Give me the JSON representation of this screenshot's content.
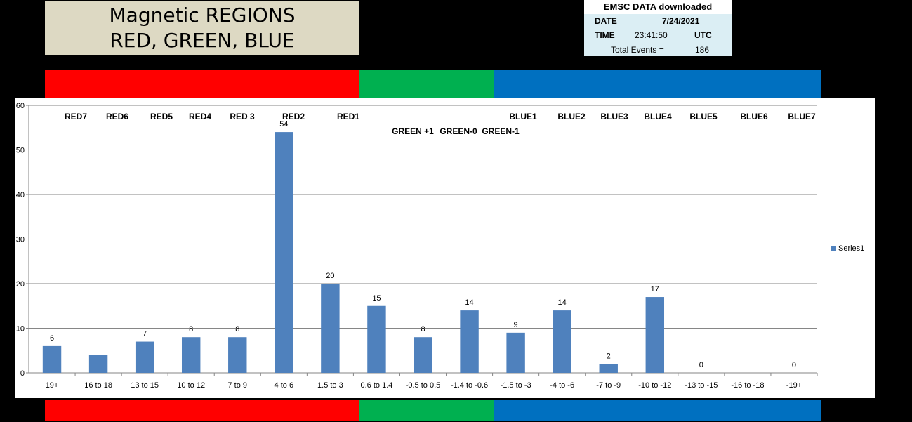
{
  "title": {
    "line1": "Magnetic REGIONS",
    "line2": "RED, GREEN, BLUE"
  },
  "info": {
    "header": "EMSC DATA downloaded",
    "date_label": "DATE",
    "date_value": "7/24/2021",
    "time_label": "TIME",
    "time_value": "23:41:50",
    "timezone": "UTC",
    "total_label": "Total Events  =",
    "total_value": "186"
  },
  "colors": {
    "red": "#ff0000",
    "green": "#00b050",
    "blue": "#0070c0",
    "bar": "#4f81bd"
  },
  "chart_data": {
    "type": "bar",
    "categories": [
      "19+",
      "16 to 18",
      "13 to 15",
      "10 to 12",
      "7 to 9",
      "4 to 6",
      "1.5 to 3",
      "0.6 to 1.4",
      "-0.5 to 0.5",
      "-1.4 to -0.6",
      "-1.5 to -3",
      "-4 to -6",
      "-7 to -9",
      "-10 to -12",
      "-13 to -15",
      "-16 to -18",
      "-19+"
    ],
    "series": [
      {
        "name": "Series1",
        "values": [
          6,
          4,
          7,
          8,
          8,
          54,
          20,
          15,
          8,
          14,
          9,
          14,
          2,
          17,
          0,
          0,
          0
        ],
        "data_labels": [
          "6",
          "",
          "7",
          "8",
          "8",
          "54",
          "20",
          "15",
          "8",
          "14",
          "9",
          "14",
          "2",
          "17",
          "0",
          "",
          "0"
        ]
      }
    ],
    "ylim": [
      0,
      60
    ],
    "yticks": [
      0,
      10,
      20,
      30,
      40,
      50,
      60
    ],
    "grid": true,
    "legend_position": "right",
    "region_labels": [
      "RED7",
      "RED6",
      "RED5",
      "RED4",
      "RED 3",
      "RED2",
      "RED1",
      "GREEN +1",
      "GREEN-0",
      "GREEN-1",
      "BLUE1",
      "BLUE2",
      "BLUE3",
      "BLUE4",
      "BLUE5",
      "BLUE6",
      "BLUE7"
    ]
  }
}
